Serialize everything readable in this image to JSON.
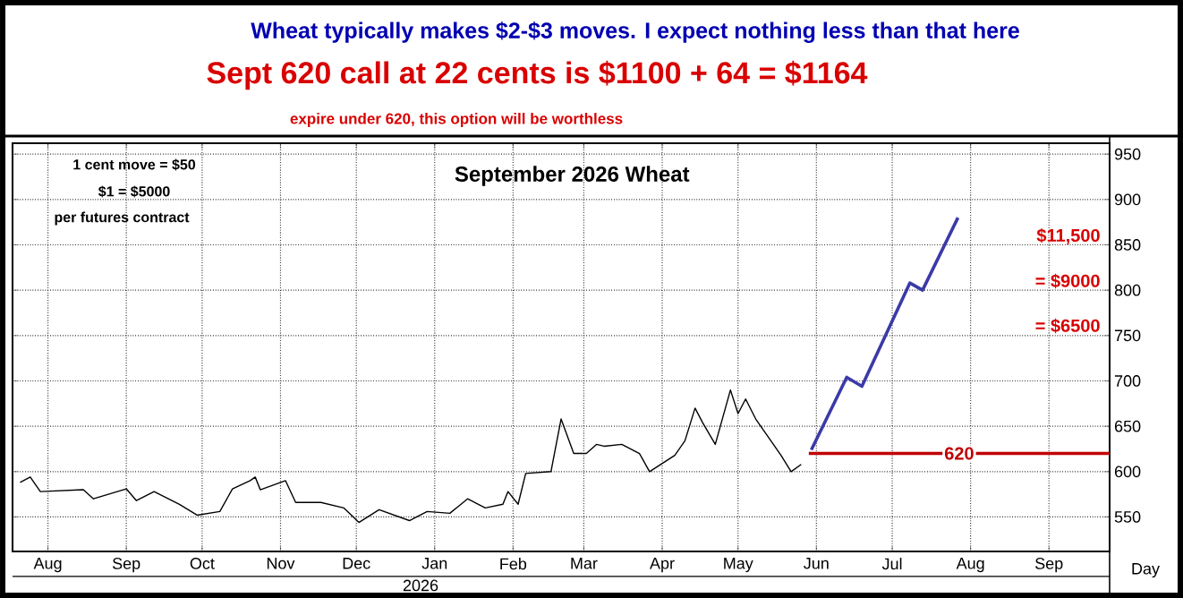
{
  "chart_data": {
    "type": "line",
    "title": "September 2026 Wheat",
    "xlabel": "Day",
    "annotations": [
      "Wheat typically makes $2-$3 moves. I expect nothing less than that here",
      "Sept 620 call at 22 cents is $1100 + 64 = $1164",
      "expire under 620, this option will be worthless",
      "1 cent move = $50",
      "$1 = $5000",
      "per futures contract",
      "2026",
      "$11,500",
      "= $9000",
      "= $6500"
    ],
    "x": [
      "2025-08-04",
      "2025-08-08",
      "2025-08-12",
      "2025-08-29",
      "2025-09-02",
      "2025-09-15",
      "2025-09-19",
      "2025-09-26",
      "2025-10-06",
      "2025-10-13",
      "2025-10-22",
      "2025-10-27",
      "2025-11-03",
      "2025-11-05",
      "2025-11-07",
      "2025-11-17",
      "2025-11-21",
      "2025-12-01",
      "2025-12-10",
      "2025-12-16",
      "2025-12-24",
      "2026-01-05",
      "2026-01-12",
      "2026-01-21",
      "2026-01-28",
      "2026-02-04",
      "2026-02-11",
      "2026-02-13",
      "2026-02-17",
      "2026-02-20",
      "2026-03-02",
      "2026-03-06",
      "2026-03-11",
      "2026-03-16",
      "2026-03-20",
      "2026-03-23",
      "2026-03-30",
      "2026-04-06",
      "2026-04-10",
      "2026-04-20",
      "2026-04-24",
      "2026-04-28",
      "2026-05-01",
      "2026-05-06",
      "2026-05-08",
      "2026-05-12",
      "2026-05-15",
      "2026-05-18",
      "2026-05-22",
      "2026-05-28",
      "2026-06-01",
      "2026-06-05",
      "2026-06-09"
    ],
    "series": [
      {
        "color": "#000000",
        "values": [
          588,
          594,
          578,
          580,
          570,
          581,
          568,
          578,
          564,
          552,
          556,
          581,
          590,
          594,
          580,
          590,
          566,
          566,
          560,
          544,
          558,
          546,
          556,
          554,
          570,
          560,
          564,
          578,
          564,
          598,
          600,
          658,
          620,
          620,
          630,
          628,
          630,
          620,
          600,
          618,
          634,
          670,
          654,
          630,
          650,
          690,
          664,
          680,
          658,
          634,
          618,
          600,
          608
        ]
      },
      {
        "color": "#3a3aa8",
        "x": [
          "2026-06-13",
          "2026-06-27",
          "2026-07-03",
          "2026-07-22",
          "2026-07-27",
          "2026-08-10"
        ],
        "values": [
          624,
          704,
          694,
          808,
          800,
          880
        ]
      },
      {
        "name": "620",
        "color": "#c00000",
        "x": [
          "2026-06-12",
          "2026-10-09"
        ],
        "values": [
          620,
          620
        ]
      }
    ],
    "xlim": [
      "2025-08-01",
      "2026-10-09"
    ],
    "xticks": [
      {
        "value": "2025-08-15",
        "label": "Aug"
      },
      {
        "value": "2025-09-15",
        "label": "Sep"
      },
      {
        "value": "2025-10-15",
        "label": "Oct"
      },
      {
        "value": "2025-11-15",
        "label": "Nov"
      },
      {
        "value": "2025-12-15",
        "label": "Dec"
      },
      {
        "value": "2026-01-15",
        "label": "Jan"
      },
      {
        "value": "2026-02-15",
        "label": "Feb"
      },
      {
        "value": "2026-03-15",
        "label": "Mar"
      },
      {
        "value": "2026-04-15",
        "label": "Apr"
      },
      {
        "value": "2026-05-15",
        "label": "May"
      },
      {
        "value": "2026-06-15",
        "label": "Jun"
      },
      {
        "value": "2026-07-15",
        "label": "Jul"
      },
      {
        "value": "2026-08-15",
        "label": "Aug"
      },
      {
        "value": "2026-09-15",
        "label": "Sep"
      }
    ],
    "ylim": [
      512,
      962
    ],
    "yticks": [
      550,
      600,
      650,
      700,
      750,
      800,
      850,
      900,
      950
    ],
    "grid": true,
    "marker": "none",
    "line_style": "solid"
  }
}
